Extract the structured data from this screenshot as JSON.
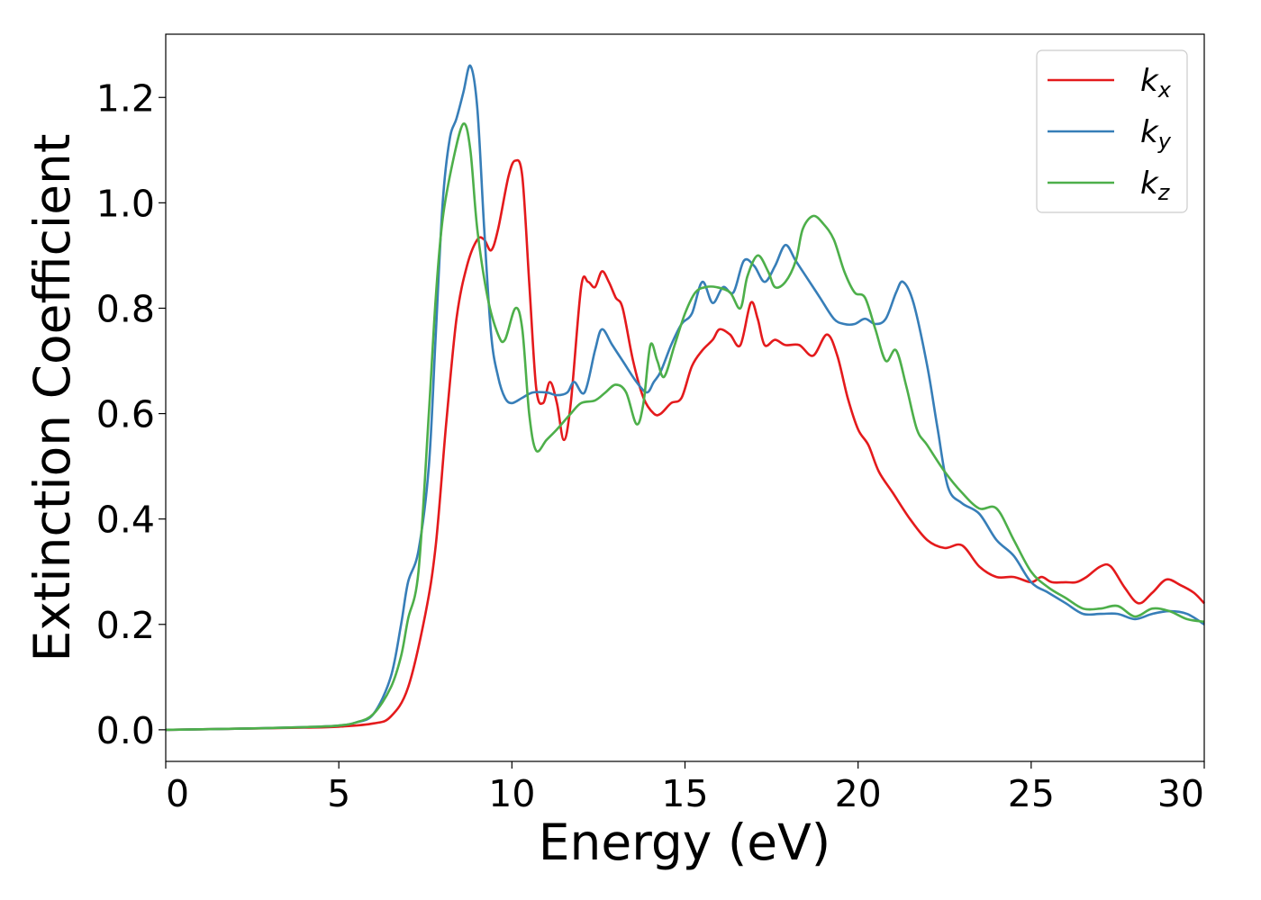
{
  "chart_data": {
    "type": "line",
    "title": "",
    "xlabel": "Energy (eV)",
    "ylabel": "Extinction Coefficient",
    "xlim": [
      0,
      30
    ],
    "ylim": [
      -0.06,
      1.32
    ],
    "xticks": [
      0,
      5,
      10,
      15,
      20,
      25,
      30
    ],
    "xtick_labels": [
      "0",
      "5",
      "10",
      "15",
      "20",
      "25",
      "30"
    ],
    "yticks": [
      0.0,
      0.2,
      0.4,
      0.6,
      0.8,
      1.0,
      1.2
    ],
    "ytick_labels": [
      "0.0",
      "0.2",
      "0.4",
      "0.6",
      "0.8",
      "1.0",
      "1.2"
    ],
    "grid": false,
    "legend_position": "top-right",
    "series": [
      {
        "name": "k",
        "subscript": "x",
        "color": "#e41a1c",
        "points": [
          [
            0,
            0
          ],
          [
            2,
            0.002
          ],
          [
            4,
            0.004
          ],
          [
            5,
            0.006
          ],
          [
            6,
            0.012
          ],
          [
            6.5,
            0.025
          ],
          [
            7,
            0.08
          ],
          [
            7.5,
            0.22
          ],
          [
            7.8,
            0.35
          ],
          [
            8.1,
            0.58
          ],
          [
            8.4,
            0.78
          ],
          [
            8.7,
            0.88
          ],
          [
            9.0,
            0.93
          ],
          [
            9.2,
            0.93
          ],
          [
            9.4,
            0.91
          ],
          [
            9.6,
            0.95
          ],
          [
            9.9,
            1.05
          ],
          [
            10.1,
            1.08
          ],
          [
            10.3,
            1.05
          ],
          [
            10.5,
            0.85
          ],
          [
            10.7,
            0.65
          ],
          [
            10.9,
            0.62
          ],
          [
            11.1,
            0.66
          ],
          [
            11.3,
            0.62
          ],
          [
            11.5,
            0.55
          ],
          [
            11.7,
            0.62
          ],
          [
            12.0,
            0.84
          ],
          [
            12.2,
            0.85
          ],
          [
            12.4,
            0.84
          ],
          [
            12.6,
            0.87
          ],
          [
            12.8,
            0.85
          ],
          [
            13.0,
            0.82
          ],
          [
            13.2,
            0.8
          ],
          [
            13.5,
            0.7
          ],
          [
            13.8,
            0.63
          ],
          [
            14.1,
            0.6
          ],
          [
            14.3,
            0.6
          ],
          [
            14.6,
            0.62
          ],
          [
            14.9,
            0.63
          ],
          [
            15.2,
            0.69
          ],
          [
            15.5,
            0.72
          ],
          [
            15.8,
            0.74
          ],
          [
            16.0,
            0.76
          ],
          [
            16.3,
            0.75
          ],
          [
            16.6,
            0.73
          ],
          [
            16.9,
            0.81
          ],
          [
            17.1,
            0.78
          ],
          [
            17.3,
            0.73
          ],
          [
            17.6,
            0.74
          ],
          [
            17.9,
            0.73
          ],
          [
            18.3,
            0.73
          ],
          [
            18.7,
            0.71
          ],
          [
            19.1,
            0.75
          ],
          [
            19.4,
            0.71
          ],
          [
            19.7,
            0.63
          ],
          [
            20.0,
            0.57
          ],
          [
            20.3,
            0.54
          ],
          [
            20.6,
            0.49
          ],
          [
            21.0,
            0.45
          ],
          [
            21.5,
            0.4
          ],
          [
            22.0,
            0.36
          ],
          [
            22.5,
            0.345
          ],
          [
            23.0,
            0.35
          ],
          [
            23.5,
            0.31
          ],
          [
            24.0,
            0.29
          ],
          [
            24.5,
            0.29
          ],
          [
            25.0,
            0.28
          ],
          [
            25.3,
            0.29
          ],
          [
            25.6,
            0.28
          ],
          [
            26.0,
            0.28
          ],
          [
            26.3,
            0.28
          ],
          [
            26.6,
            0.29
          ],
          [
            27.0,
            0.31
          ],
          [
            27.3,
            0.31
          ],
          [
            27.7,
            0.27
          ],
          [
            28.1,
            0.24
          ],
          [
            28.5,
            0.26
          ],
          [
            28.9,
            0.285
          ],
          [
            29.3,
            0.275
          ],
          [
            29.7,
            0.26
          ],
          [
            30.0,
            0.24
          ]
        ]
      },
      {
        "name": "k",
        "subscript": "y",
        "color": "#377eb8",
        "points": [
          [
            0,
            0
          ],
          [
            2,
            0.002
          ],
          [
            4,
            0.005
          ],
          [
            5,
            0.008
          ],
          [
            5.5,
            0.014
          ],
          [
            6,
            0.03
          ],
          [
            6.5,
            0.1
          ],
          [
            6.8,
            0.2
          ],
          [
            7.0,
            0.28
          ],
          [
            7.3,
            0.34
          ],
          [
            7.6,
            0.5
          ],
          [
            7.8,
            0.75
          ],
          [
            8.0,
            1.0
          ],
          [
            8.2,
            1.12
          ],
          [
            8.4,
            1.16
          ],
          [
            8.6,
            1.21
          ],
          [
            8.8,
            1.26
          ],
          [
            9.0,
            1.18
          ],
          [
            9.2,
            0.95
          ],
          [
            9.4,
            0.75
          ],
          [
            9.6,
            0.67
          ],
          [
            9.8,
            0.63
          ],
          [
            10.0,
            0.62
          ],
          [
            10.3,
            0.63
          ],
          [
            10.6,
            0.64
          ],
          [
            11.0,
            0.64
          ],
          [
            11.3,
            0.635
          ],
          [
            11.6,
            0.64
          ],
          [
            11.8,
            0.66
          ],
          [
            12.1,
            0.64
          ],
          [
            12.4,
            0.72
          ],
          [
            12.6,
            0.76
          ],
          [
            12.9,
            0.73
          ],
          [
            13.2,
            0.7
          ],
          [
            13.6,
            0.66
          ],
          [
            13.9,
            0.64
          ],
          [
            14.1,
            0.66
          ],
          [
            14.3,
            0.68
          ],
          [
            14.6,
            0.73
          ],
          [
            14.9,
            0.77
          ],
          [
            15.2,
            0.79
          ],
          [
            15.5,
            0.85
          ],
          [
            15.8,
            0.81
          ],
          [
            16.1,
            0.84
          ],
          [
            16.4,
            0.83
          ],
          [
            16.7,
            0.89
          ],
          [
            17.0,
            0.88
          ],
          [
            17.3,
            0.85
          ],
          [
            17.6,
            0.88
          ],
          [
            17.9,
            0.92
          ],
          [
            18.2,
            0.89
          ],
          [
            18.5,
            0.86
          ],
          [
            18.9,
            0.82
          ],
          [
            19.3,
            0.78
          ],
          [
            19.6,
            0.77
          ],
          [
            19.9,
            0.77
          ],
          [
            20.2,
            0.78
          ],
          [
            20.5,
            0.77
          ],
          [
            20.8,
            0.78
          ],
          [
            21.1,
            0.83
          ],
          [
            21.3,
            0.85
          ],
          [
            21.6,
            0.81
          ],
          [
            22.0,
            0.69
          ],
          [
            22.3,
            0.57
          ],
          [
            22.6,
            0.46
          ],
          [
            23.0,
            0.43
          ],
          [
            23.5,
            0.41
          ],
          [
            24.0,
            0.36
          ],
          [
            24.5,
            0.33
          ],
          [
            25.0,
            0.28
          ],
          [
            25.5,
            0.26
          ],
          [
            26.0,
            0.24
          ],
          [
            26.5,
            0.22
          ],
          [
            27.0,
            0.22
          ],
          [
            27.5,
            0.22
          ],
          [
            28.0,
            0.21
          ],
          [
            28.5,
            0.22
          ],
          [
            29.0,
            0.225
          ],
          [
            29.5,
            0.22
          ],
          [
            30.0,
            0.2
          ]
        ]
      },
      {
        "name": "k",
        "subscript": "z",
        "color": "#4daf4a",
        "points": [
          [
            0,
            0
          ],
          [
            2,
            0.002
          ],
          [
            4,
            0.005
          ],
          [
            5,
            0.008
          ],
          [
            5.5,
            0.014
          ],
          [
            6,
            0.03
          ],
          [
            6.5,
            0.08
          ],
          [
            6.8,
            0.14
          ],
          [
            7.0,
            0.21
          ],
          [
            7.3,
            0.3
          ],
          [
            7.6,
            0.6
          ],
          [
            7.8,
            0.82
          ],
          [
            8.0,
            0.97
          ],
          [
            8.3,
            1.08
          ],
          [
            8.6,
            1.15
          ],
          [
            8.8,
            1.1
          ],
          [
            9.0,
            0.95
          ],
          [
            9.3,
            0.82
          ],
          [
            9.6,
            0.75
          ],
          [
            9.8,
            0.74
          ],
          [
            10.1,
            0.8
          ],
          [
            10.3,
            0.76
          ],
          [
            10.5,
            0.6
          ],
          [
            10.7,
            0.53
          ],
          [
            11.0,
            0.55
          ],
          [
            11.3,
            0.57
          ],
          [
            11.7,
            0.6
          ],
          [
            12.0,
            0.62
          ],
          [
            12.4,
            0.625
          ],
          [
            12.7,
            0.64
          ],
          [
            13.0,
            0.655
          ],
          [
            13.3,
            0.64
          ],
          [
            13.6,
            0.58
          ],
          [
            13.8,
            0.62
          ],
          [
            14.0,
            0.73
          ],
          [
            14.2,
            0.7
          ],
          [
            14.4,
            0.67
          ],
          [
            14.7,
            0.73
          ],
          [
            15.0,
            0.79
          ],
          [
            15.3,
            0.83
          ],
          [
            15.6,
            0.84
          ],
          [
            15.9,
            0.84
          ],
          [
            16.3,
            0.83
          ],
          [
            16.6,
            0.8
          ],
          [
            16.8,
            0.86
          ],
          [
            17.1,
            0.9
          ],
          [
            17.4,
            0.87
          ],
          [
            17.6,
            0.84
          ],
          [
            17.9,
            0.85
          ],
          [
            18.2,
            0.89
          ],
          [
            18.4,
            0.95
          ],
          [
            18.7,
            0.975
          ],
          [
            19.0,
            0.96
          ],
          [
            19.3,
            0.93
          ],
          [
            19.6,
            0.87
          ],
          [
            19.9,
            0.83
          ],
          [
            20.2,
            0.82
          ],
          [
            20.5,
            0.76
          ],
          [
            20.8,
            0.7
          ],
          [
            21.1,
            0.72
          ],
          [
            21.4,
            0.65
          ],
          [
            21.7,
            0.57
          ],
          [
            22.0,
            0.54
          ],
          [
            22.5,
            0.49
          ],
          [
            23.0,
            0.45
          ],
          [
            23.5,
            0.42
          ],
          [
            24.0,
            0.42
          ],
          [
            24.5,
            0.36
          ],
          [
            25.0,
            0.3
          ],
          [
            25.5,
            0.27
          ],
          [
            26.0,
            0.25
          ],
          [
            26.5,
            0.23
          ],
          [
            27.0,
            0.23
          ],
          [
            27.5,
            0.235
          ],
          [
            28.0,
            0.215
          ],
          [
            28.5,
            0.23
          ],
          [
            29.0,
            0.225
          ],
          [
            29.5,
            0.21
          ],
          [
            30.0,
            0.205
          ]
        ]
      }
    ]
  }
}
